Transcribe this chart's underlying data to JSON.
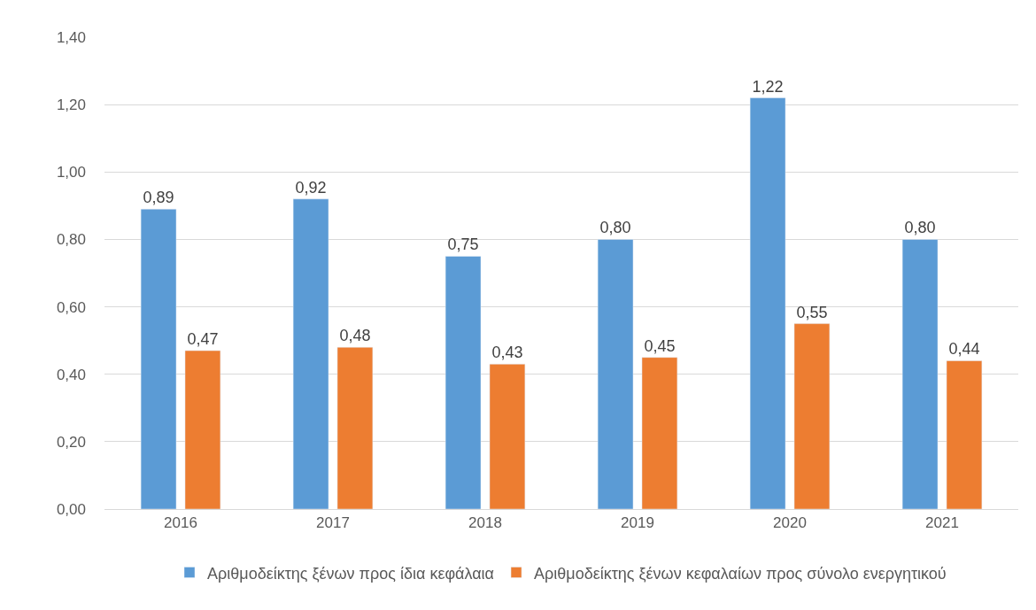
{
  "chart_data": {
    "type": "bar",
    "categories": [
      "2016",
      "2017",
      "2018",
      "2019",
      "2020",
      "2021"
    ],
    "series": [
      {
        "name": "Αριθμοδείκτης ξένων προς ίδια κεφάλαια",
        "color": "#5b9bd5",
        "values": [
          0.89,
          0.92,
          0.75,
          0.8,
          1.22,
          0.8
        ],
        "value_labels": [
          "0,89",
          "0,92",
          "0,75",
          "0,80",
          "1,22",
          "0,80"
        ]
      },
      {
        "name": "Αριθμοδείκτης ξένων κεφαλαίων προς σύνολο ενεργητικού",
        "color": "#ed7d31",
        "values": [
          0.47,
          0.48,
          0.43,
          0.45,
          0.55,
          0.44
        ],
        "value_labels": [
          "0,47",
          "0,48",
          "0,43",
          "0,45",
          "0,55",
          "0,44"
        ]
      }
    ],
    "ylim": [
      0,
      1.4
    ],
    "yticks": [
      {
        "value": 0,
        "label": "0,00"
      },
      {
        "value": 0.2,
        "label": "0,20"
      },
      {
        "value": 0.4,
        "label": "0,40"
      },
      {
        "value": 0.6,
        "label": "0,60"
      },
      {
        "value": 0.8,
        "label": "0,80"
      },
      {
        "value": 1.0,
        "label": "1,00"
      },
      {
        "value": 1.2,
        "label": "1,20"
      },
      {
        "value": 1.4,
        "label": "1,40"
      }
    ],
    "grid": "y",
    "legend": "bottom"
  }
}
